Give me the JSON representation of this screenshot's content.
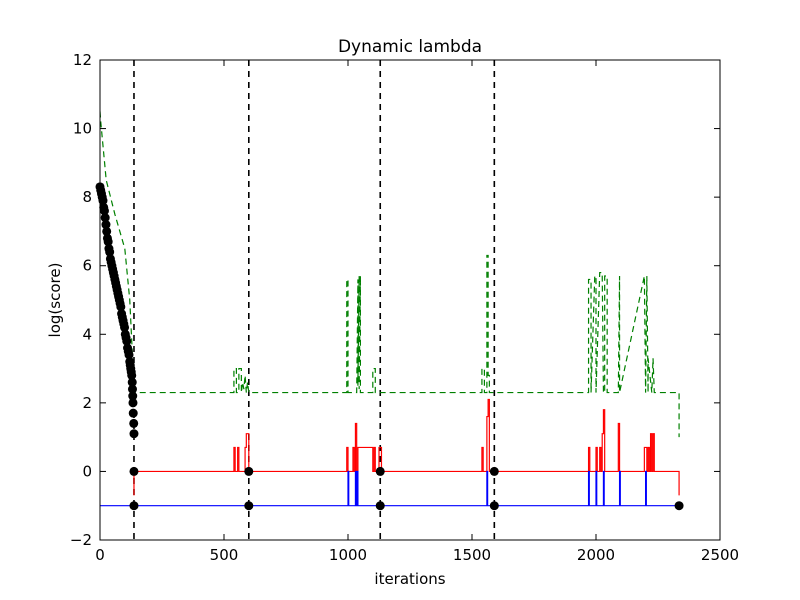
{
  "chart_data": {
    "type": "line",
    "title": "Dynamic lambda",
    "xlabel": "iterations",
    "ylabel": "log(score)",
    "xlim": [
      0,
      2500
    ],
    "ylim": [
      -2,
      12
    ],
    "xticks": [
      0,
      500,
      1000,
      1500,
      2000,
      2500
    ],
    "yticks": [
      -2,
      0,
      2,
      4,
      6,
      8,
      10,
      12
    ],
    "xtick_labels": [
      "0",
      "500",
      "1000",
      "1500",
      "2000",
      "2500"
    ],
    "ytick_labels": [
      "−2",
      "0",
      "2",
      "4",
      "6",
      "8",
      "10",
      "12"
    ],
    "grid": false,
    "legend": "none",
    "vertical_lines": [
      137,
      600,
      1130,
      1590
    ],
    "colors": {
      "green": "#008000",
      "red": "#ff0000",
      "blue": "#0000ff",
      "black": "#000000"
    },
    "series": [
      {
        "color": "green",
        "style": "dashed",
        "x": [
          0,
          3,
          25,
          60,
          100,
          120,
          130,
          137,
          140,
          540,
          540,
          550,
          550,
          560,
          560,
          570,
          570,
          575,
          580,
          585,
          590,
          595,
          600,
          600,
          995,
          995,
          1000,
          1000,
          1035,
          1040,
          1040,
          1045,
          1045,
          1050,
          1050,
          1055,
          1055,
          1100,
          1100,
          1110,
          1110,
          1130,
          1130,
          1540,
          1540,
          1550,
          1550,
          1560,
          1560,
          1565,
          1565,
          1570,
          1570,
          1590,
          1590,
          1970,
          1970,
          1980,
          1980,
          1995,
          2000,
          2000,
          2015,
          2025,
          2030,
          2035,
          2035,
          2045,
          2045,
          2090,
          2095,
          2095,
          2195,
          2200,
          2205,
          2210,
          2210,
          2225,
          2230,
          2235,
          2240,
          2240,
          2335,
          2335
        ],
        "y": [
          10.5,
          10.2,
          8.5,
          7.5,
          6.5,
          5,
          3.5,
          2.3,
          2.3,
          2.3,
          3.0,
          3.0,
          2.3,
          2.3,
          3.0,
          3.0,
          2.3,
          2.6,
          2.4,
          2.8,
          2.3,
          2.6,
          2.3,
          2.3,
          2.3,
          5.6,
          5.6,
          2.3,
          2.3,
          5.6,
          2.5,
          5.7,
          2.4,
          5.7,
          2.3,
          2.3,
          2.3,
          2.3,
          3.0,
          3.0,
          2.3,
          2.3,
          2.3,
          2.3,
          3.0,
          3.0,
          2.3,
          2.3,
          6.3,
          6.3,
          2.8,
          2.8,
          2.3,
          2.3,
          2.3,
          2.3,
          5.6,
          5.6,
          2.3,
          5.7,
          5.7,
          2.3,
          5.8,
          5.8,
          2.3,
          2.3,
          5.7,
          5.7,
          2.3,
          2.3,
          5.7,
          2.3,
          5.7,
          2.3,
          5.7,
          2.3,
          3.3,
          2.3,
          3.3,
          2.3,
          2.3,
          2.3,
          2.3,
          1.0
        ]
      },
      {
        "color": "red",
        "style": "solid",
        "x": [
          137,
          137,
          540,
          540,
          545,
          545,
          555,
          555,
          560,
          560,
          585,
          585,
          590,
          590,
          600,
          600,
          995,
          995,
          1000,
          1000,
          1020,
          1020,
          1025,
          1025,
          1030,
          1030,
          1035,
          1035,
          1040,
          1040,
          1100,
          1100,
          1105,
          1105,
          1110,
          1110,
          1125,
          1125,
          1135,
          1135,
          1540,
          1540,
          1545,
          1545,
          1560,
          1560,
          1565,
          1565,
          1570,
          1570,
          1590,
          1590,
          1970,
          1970,
          1975,
          1975,
          2000,
          2000,
          2005,
          2005,
          2015,
          2015,
          2020,
          2020,
          2025,
          2025,
          2030,
          2030,
          2035,
          2035,
          2090,
          2090,
          2095,
          2095,
          2195,
          2195,
          2205,
          2205,
          2210,
          2210,
          2215,
          2215,
          2220,
          2220,
          2225,
          2225,
          2230,
          2230,
          2235,
          2235,
          2335,
          2335
        ],
        "y": [
          -0.7,
          0,
          0,
          0.7,
          0.7,
          0,
          0,
          0.7,
          0.7,
          0,
          0,
          0.7,
          0.7,
          1.1,
          1.1,
          0,
          0,
          0.7,
          0.7,
          0,
          0,
          0.7,
          0.7,
          0,
          0,
          1.4,
          1.4,
          0,
          0,
          0.7,
          0.7,
          0,
          0,
          0.7,
          0.7,
          0,
          0,
          0.7,
          0.7,
          0,
          0,
          0.7,
          0.7,
          0,
          0,
          1.6,
          1.6,
          2.1,
          2.1,
          0,
          0,
          0,
          0,
          0.7,
          0.7,
          0,
          0,
          0.7,
          0.7,
          0,
          0,
          0.7,
          0.7,
          0,
          0,
          1.1,
          1.1,
          1.8,
          1.8,
          0,
          0,
          1.4,
          1.4,
          0,
          0,
          0.7,
          0.7,
          0,
          0,
          0.7,
          0.7,
          0,
          0,
          1.1,
          1.1,
          0,
          0,
          1.1,
          1.1,
          0,
          0,
          -0.7
        ]
      },
      {
        "color": "blue",
        "style": "solid",
        "x": [
          0,
          1000,
          1000,
          1003,
          1003,
          1030,
          1030,
          1033,
          1033,
          1037,
          1037,
          1040,
          1040,
          1560,
          1560,
          1563,
          1563,
          1970,
          1970,
          1973,
          1973,
          2000,
          2000,
          2003,
          2003,
          2030,
          2030,
          2033,
          2033,
          2095,
          2095,
          2098,
          2098,
          2200,
          2200,
          2203,
          2203,
          2335
        ],
        "y": [
          -1,
          -1,
          0,
          0,
          -1,
          -1,
          0,
          0,
          -1,
          -1,
          0,
          0,
          -1,
          -1,
          0,
          0,
          -1,
          -1,
          0,
          0,
          -1,
          -1,
          0,
          0,
          -1,
          -1,
          0,
          0,
          -1,
          -1,
          0,
          0,
          -1,
          -1,
          0,
          0,
          -1,
          -1
        ]
      }
    ],
    "markers": {
      "color": "black",
      "points": [
        [
          0,
          8.3
        ],
        [
          3,
          8.2
        ],
        [
          6,
          8.1
        ],
        [
          9,
          8.0
        ],
        [
          12,
          7.9
        ],
        [
          15,
          7.7
        ],
        [
          18,
          7.6
        ],
        [
          21,
          7.4
        ],
        [
          24,
          7.2
        ],
        [
          27,
          7.0
        ],
        [
          30,
          6.8
        ],
        [
          33,
          6.7
        ],
        [
          36,
          6.5
        ],
        [
          39,
          6.4
        ],
        [
          42,
          6.2
        ],
        [
          45,
          6.1
        ],
        [
          48,
          6.0
        ],
        [
          51,
          5.9
        ],
        [
          54,
          5.8
        ],
        [
          57,
          5.7
        ],
        [
          60,
          5.6
        ],
        [
          63,
          5.5
        ],
        [
          66,
          5.4
        ],
        [
          69,
          5.3
        ],
        [
          72,
          5.2
        ],
        [
          75,
          5.1
        ],
        [
          78,
          5.0
        ],
        [
          81,
          4.9
        ],
        [
          84,
          4.8
        ],
        [
          87,
          4.6
        ],
        [
          90,
          4.5
        ],
        [
          93,
          4.4
        ],
        [
          96,
          4.3
        ],
        [
          99,
          4.2
        ],
        [
          102,
          4.0
        ],
        [
          105,
          3.9
        ],
        [
          108,
          3.8
        ],
        [
          111,
          3.6
        ],
        [
          114,
          3.5
        ],
        [
          117,
          3.4
        ],
        [
          120,
          3.2
        ],
        [
          122,
          3.1
        ],
        [
          124,
          3.0
        ],
        [
          126,
          2.9
        ],
        [
          128,
          2.8
        ],
        [
          130,
          2.6
        ],
        [
          131,
          2.4
        ],
        [
          132,
          2.2
        ],
        [
          133,
          2.0
        ],
        [
          134,
          1.7
        ],
        [
          136,
          1.4
        ],
        [
          137,
          1.1
        ],
        [
          137,
          0
        ],
        [
          137,
          -1
        ],
        [
          600,
          0
        ],
        [
          600,
          -1
        ],
        [
          1130,
          0
        ],
        [
          1130,
          -1
        ],
        [
          1590,
          0
        ],
        [
          1590,
          -1
        ],
        [
          2335,
          -1
        ]
      ]
    }
  }
}
